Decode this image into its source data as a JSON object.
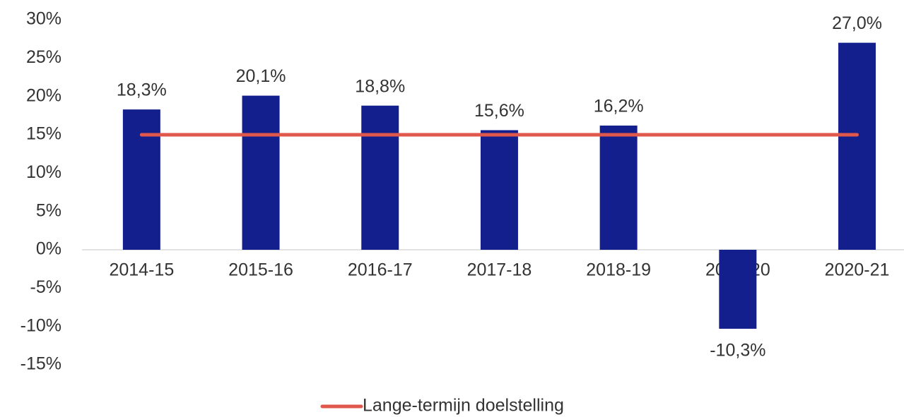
{
  "chart_data": {
    "type": "bar",
    "categories": [
      "2014-15",
      "2015-16",
      "2016-17",
      "2017-18",
      "2018-19",
      "2019-20",
      "2020-21"
    ],
    "series": [
      {
        "type": "bar",
        "color": "#131f8c",
        "values": [
          18.3,
          20.1,
          18.8,
          15.6,
          16.2,
          -10.3,
          27.0
        ],
        "value_labels": [
          "18,3%",
          "20,1%",
          "18,8%",
          "15,6%",
          "16,2%",
          "-10,3%",
          "27,0%"
        ]
      },
      {
        "type": "line",
        "name": "Lange-termijn doelstelling",
        "color": "#e0574b",
        "values": [
          15,
          15,
          15,
          15,
          15,
          15,
          15
        ]
      }
    ],
    "ylim": [
      -15,
      30
    ],
    "yticks": [
      {
        "value": -15,
        "label": "-15%"
      },
      {
        "value": -10,
        "label": "-10%"
      },
      {
        "value": -5,
        "label": "-5%"
      },
      {
        "value": 0,
        "label": "0%"
      },
      {
        "value": 5,
        "label": "5%"
      },
      {
        "value": 10,
        "label": "10%"
      },
      {
        "value": 15,
        "label": "15%"
      },
      {
        "value": 20,
        "label": "20%"
      },
      {
        "value": 25,
        "label": "25%"
      },
      {
        "value": 30,
        "label": "30%"
      }
    ],
    "grid": false,
    "legend": "bottom"
  }
}
